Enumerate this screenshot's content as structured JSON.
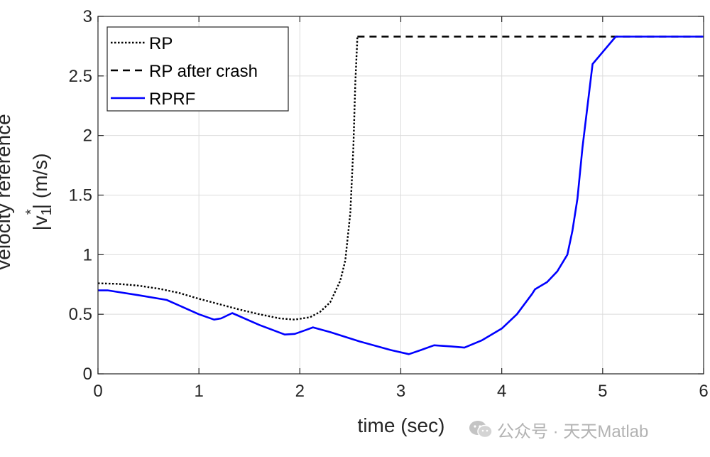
{
  "chart_data": {
    "type": "line",
    "xlabel": "time (sec)",
    "ylabel_line1": "velocity reference",
    "ylabel_prefix": "|v",
    "ylabel_subscript": "1",
    "ylabel_superscript": "*",
    "ylabel_suffix": "| (m/s)",
    "xlim": [
      0,
      6
    ],
    "ylim": [
      0,
      3
    ],
    "xticks": [
      0,
      1,
      2,
      3,
      4,
      5,
      6
    ],
    "yticks": [
      0,
      0.5,
      1,
      1.5,
      2,
      2.5,
      3
    ],
    "xtick_labels": [
      "0",
      "1",
      "2",
      "3",
      "4",
      "5",
      "6"
    ],
    "ytick_labels": [
      "0",
      "0.5",
      "1",
      "1.5",
      "2",
      "2.5",
      "3"
    ],
    "grid": true,
    "legend_position": "top-left",
    "series": [
      {
        "name": "RP",
        "color": "#000000",
        "style": "dotted",
        "x": [
          0,
          0.2,
          0.4,
          0.6,
          0.8,
          1.0,
          1.2,
          1.4,
          1.6,
          1.8,
          1.95,
          2.1,
          2.2,
          2.3,
          2.4,
          2.45,
          2.5,
          2.53,
          2.55,
          2.57
        ],
        "y": [
          0.76,
          0.755,
          0.74,
          0.715,
          0.68,
          0.63,
          0.585,
          0.54,
          0.5,
          0.465,
          0.455,
          0.475,
          0.52,
          0.6,
          0.78,
          0.95,
          1.35,
          1.9,
          2.45,
          2.83
        ]
      },
      {
        "name": "RP after crash",
        "color": "#000000",
        "style": "dashed",
        "x": [
          2.57,
          2.62,
          6.0
        ],
        "y": [
          2.83,
          2.83,
          2.83
        ]
      },
      {
        "name": "RPRF",
        "color": "#0000ff",
        "style": "solid",
        "x": [
          0,
          0.1,
          0.4,
          0.68,
          1.0,
          1.15,
          1.22,
          1.33,
          1.6,
          1.85,
          1.95,
          2.05,
          2.13,
          2.3,
          2.6,
          2.9,
          3.08,
          3.2,
          3.33,
          3.5,
          3.63,
          3.8,
          4.0,
          4.15,
          4.3,
          4.33,
          4.45,
          4.55,
          4.65,
          4.7,
          4.75,
          4.8,
          4.85,
          4.9,
          5.0,
          5.1,
          5.13,
          6.0
        ],
        "y": [
          0.7,
          0.7,
          0.66,
          0.62,
          0.5,
          0.455,
          0.465,
          0.51,
          0.41,
          0.33,
          0.335,
          0.365,
          0.39,
          0.35,
          0.27,
          0.2,
          0.165,
          0.2,
          0.24,
          0.23,
          0.22,
          0.28,
          0.38,
          0.5,
          0.67,
          0.71,
          0.77,
          0.86,
          1.0,
          1.2,
          1.47,
          1.9,
          2.25,
          2.6,
          2.7,
          2.8,
          2.83,
          2.83
        ]
      }
    ]
  },
  "watermark": {
    "icon": "wechat-icon",
    "text": "公众号 · 天天Matlab"
  }
}
